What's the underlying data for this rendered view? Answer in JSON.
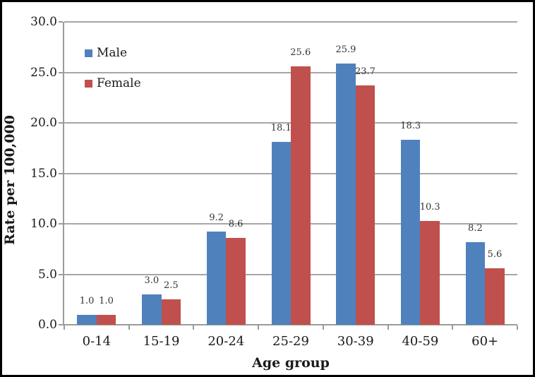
{
  "chart_data": {
    "type": "bar",
    "title": "",
    "xlabel": "Age group",
    "ylabel": "Rate per 100,000",
    "categories": [
      "0-14",
      "15-19",
      "20-24",
      "25-29",
      "30-39",
      "40-59",
      "60+"
    ],
    "series": [
      {
        "name": "Male",
        "color": "#4F81BD",
        "values": [
          1.0,
          3.0,
          9.2,
          18.1,
          25.9,
          18.3,
          8.2
        ]
      },
      {
        "name": "Female",
        "color": "#C0504D",
        "values": [
          1.0,
          2.5,
          8.6,
          25.6,
          23.7,
          10.3,
          5.6
        ]
      }
    ],
    "ylim": [
      0,
      30
    ],
    "ytick_step": 5,
    "ytick_labels": [
      "0.0",
      "5.0",
      "10.0",
      "15.0",
      "20.0",
      "25.0",
      "30.0"
    ],
    "grid": true,
    "gridline_color": "#A6A6A6",
    "axis_color": "#9B9B9B",
    "text_color": "#1A1A1A",
    "data_labels": true,
    "label_decimals": 1,
    "legend_position": "inside-top-left"
  }
}
